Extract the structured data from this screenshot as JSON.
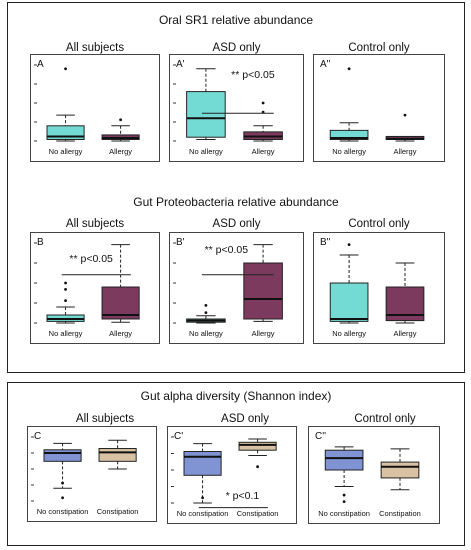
{
  "colors": {
    "teal": "#74dbd4",
    "maroon": "#7b3a5e",
    "blue": "#8093d3",
    "tan": "#d8c2a3"
  },
  "titles": {
    "oral": "Oral SR1 relative abundance",
    "gut_proteo": "Gut Proteobacteria relative abundance",
    "alpha": "Gut alpha diversity (Shannon index)"
  },
  "column_titles": {
    "all": "All subjects",
    "asd": "ASD only",
    "control": "Control only"
  },
  "panel_labels": {
    "A": "A",
    "A1": "A'",
    "A2": "A''",
    "B": "B",
    "B1": "B'",
    "B2": "B''",
    "C": "C",
    "C1": "C'",
    "C2": "C''"
  },
  "x_labels": {
    "no_allergy": "No allergy",
    "allergy": "Allergy",
    "no_constipation": "No constipation",
    "constipation": "Constipation"
  },
  "significance": {
    "A1": "** p<0.05",
    "B": "** p<0.05",
    "B1": "** p<0.05",
    "C1": "* p<0.1"
  },
  "chart_data": [
    {
      "panel": "A",
      "type": "box",
      "groups": [
        {
          "category": "No allergy",
          "min": 0.0,
          "q1": 0.02,
          "median": 0.06,
          "q3": 0.2,
          "max": 0.34,
          "outliers": [
            0.95
          ]
        },
        {
          "category": "Allergy",
          "min": 0.0,
          "q1": 0.02,
          "median": 0.04,
          "q3": 0.08,
          "max": 0.2,
          "outliers": [
            0.28
          ]
        }
      ]
    },
    {
      "panel": "A'",
      "type": "box",
      "groups": [
        {
          "category": "No allergy",
          "min": 0.02,
          "q1": 0.05,
          "median": 0.3,
          "q3": 0.65,
          "max": 0.95,
          "outliers": []
        },
        {
          "category": "Allergy",
          "min": 0.0,
          "q1": 0.02,
          "median": 0.06,
          "q3": 0.12,
          "max": 0.2,
          "outliers": [
            0.38,
            0.5
          ]
        }
      ]
    },
    {
      "panel": "A''",
      "type": "box",
      "groups": [
        {
          "category": "No allergy",
          "min": 0.0,
          "q1": 0.02,
          "median": 0.04,
          "q3": 0.14,
          "max": 0.24,
          "outliers": [
            0.95
          ]
        },
        {
          "category": "Allergy",
          "min": 0.0,
          "q1": 0.02,
          "median": 0.03,
          "q3": 0.06,
          "max": 0.06,
          "outliers": [
            0.34
          ]
        }
      ]
    },
    {
      "panel": "B",
      "type": "box",
      "groups": [
        {
          "category": "No allergy",
          "min": 0.0,
          "q1": 0.02,
          "median": 0.05,
          "q3": 0.1,
          "max": 0.2,
          "outliers": [
            0.28,
            0.42,
            0.5
          ]
        },
        {
          "category": "Allergy",
          "min": 0.01,
          "q1": 0.05,
          "median": 0.1,
          "q3": 0.45,
          "max": 0.98,
          "outliers": []
        }
      ]
    },
    {
      "panel": "B'",
      "type": "box",
      "groups": [
        {
          "category": "No allergy",
          "min": 0.0,
          "q1": 0.01,
          "median": 0.03,
          "q3": 0.05,
          "max": 0.09,
          "outliers": [
            0.13,
            0.22
          ]
        },
        {
          "category": "Allergy",
          "min": 0.02,
          "q1": 0.05,
          "median": 0.3,
          "q3": 0.75,
          "max": 0.98,
          "outliers": []
        }
      ]
    },
    {
      "panel": "B''",
      "type": "box",
      "groups": [
        {
          "category": "No allergy",
          "min": 0.0,
          "q1": 0.02,
          "median": 0.05,
          "q3": 0.5,
          "max": 0.85,
          "outliers": [
            0.98
          ]
        },
        {
          "category": "Allergy",
          "min": 0.0,
          "q1": 0.03,
          "median": 0.1,
          "q3": 0.45,
          "max": 0.75,
          "outliers": []
        }
      ]
    },
    {
      "panel": "C",
      "type": "box",
      "groups": [
        {
          "category": "No constipation",
          "min": 0.2,
          "q1": 0.62,
          "median": 0.75,
          "q3": 0.8,
          "max": 0.9,
          "outliers": [
            0.05,
            0.28
          ]
        },
        {
          "category": "Constipation",
          "min": 0.5,
          "q1": 0.62,
          "median": 0.76,
          "q3": 0.82,
          "max": 0.95,
          "outliers": []
        }
      ]
    },
    {
      "panel": "C'",
      "type": "box",
      "groups": [
        {
          "category": "No constipation",
          "min": 0.0,
          "q1": 0.42,
          "median": 0.7,
          "q3": 0.78,
          "max": 0.9,
          "outliers": [
            0.08
          ]
        },
        {
          "category": "Constipation",
          "min": 0.72,
          "q1": 0.8,
          "median": 0.88,
          "q3": 0.92,
          "max": 0.97,
          "outliers": [
            0.55
          ]
        }
      ]
    },
    {
      "panel": "C''",
      "type": "box",
      "groups": [
        {
          "category": "No constipation",
          "min": 0.25,
          "q1": 0.5,
          "median": 0.68,
          "q3": 0.8,
          "max": 0.85,
          "outliers": [
            0.02,
            0.12
          ]
        },
        {
          "category": "Constipation",
          "min": 0.2,
          "q1": 0.38,
          "median": 0.55,
          "q3": 0.62,
          "max": 0.82,
          "outliers": []
        }
      ]
    }
  ]
}
